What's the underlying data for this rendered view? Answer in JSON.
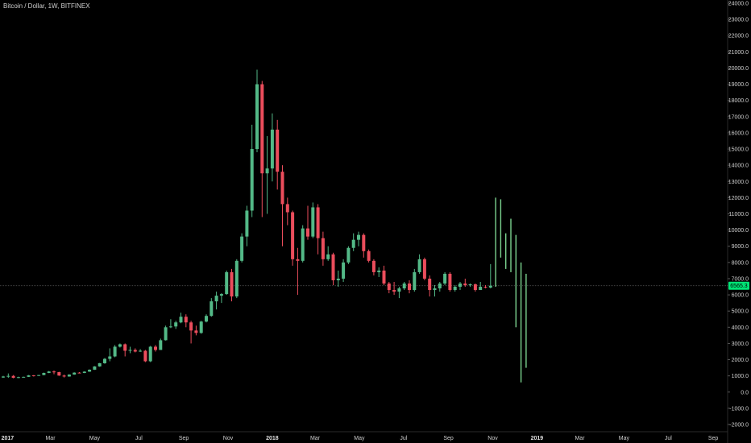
{
  "header": {
    "title": "Bitcoin / Dollar, 1W, BITFINEX"
  },
  "price_badge": {
    "label": "6565.3",
    "value": 6565.3,
    "color": "#00e676"
  },
  "colors": {
    "up": "#53b987",
    "down": "#eb4d5c",
    "projection": "#7bd38f",
    "axis_text": "#cfcfcf",
    "price_line": "#4a4a4a"
  },
  "chart_data": {
    "type": "candlestick",
    "title": "Bitcoin / Dollar, 1W, BITFINEX",
    "ylim": [
      -2000,
      24000
    ],
    "xlim": [
      "2016-12-26",
      "2019-09-30"
    ],
    "y_ticks": [
      "24000.0",
      "23000.0",
      "22000.0",
      "21000.0",
      "20000.0",
      "19000.0",
      "18000.0",
      "17000.0",
      "16000.0",
      "15000.0",
      "14000.0",
      "13000.0",
      "12000.0",
      "11000.0",
      "10000.0",
      "9000.0",
      "8000.0",
      "7000.0",
      "6000.0",
      "5000.0",
      "4000.0",
      "3000.0",
      "2000.0",
      "1000.0",
      "0.0",
      "-1000.0",
      "-2000.0"
    ],
    "x_ticks": [
      {
        "label": "2017",
        "date": "2017-01-01",
        "bold": true
      },
      {
        "label": "Mar",
        "date": "2017-03-01",
        "bold": false
      },
      {
        "label": "May",
        "date": "2017-05-01",
        "bold": false
      },
      {
        "label": "Jul",
        "date": "2017-07-01",
        "bold": false
      },
      {
        "label": "Sep",
        "date": "2017-09-01",
        "bold": false
      },
      {
        "label": "Nov",
        "date": "2017-11-01",
        "bold": false
      },
      {
        "label": "2018",
        "date": "2018-01-01",
        "bold": true
      },
      {
        "label": "Mar",
        "date": "2018-03-01",
        "bold": false
      },
      {
        "label": "May",
        "date": "2018-05-01",
        "bold": false
      },
      {
        "label": "Jul",
        "date": "2018-07-01",
        "bold": false
      },
      {
        "label": "Sep",
        "date": "2018-09-01",
        "bold": false
      },
      {
        "label": "Nov",
        "date": "2018-11-01",
        "bold": false
      },
      {
        "label": "2019",
        "date": "2019-01-01",
        "bold": true
      },
      {
        "label": "Mar",
        "date": "2019-03-01",
        "bold": false
      },
      {
        "label": "May",
        "date": "2019-05-01",
        "bold": false
      },
      {
        "label": "Jul",
        "date": "2019-07-01",
        "bold": false
      },
      {
        "label": "Sep",
        "date": "2019-09-01",
        "bold": false
      }
    ],
    "candles": [
      {
        "date": "2016-12-26",
        "open": 900,
        "high": 1000,
        "low": 880,
        "close": 960
      },
      {
        "date": "2017-01-02",
        "open": 960,
        "high": 1150,
        "low": 880,
        "close": 1000
      },
      {
        "date": "2017-01-09",
        "open": 1000,
        "high": 1050,
        "low": 850,
        "close": 880
      },
      {
        "date": "2017-01-16",
        "open": 880,
        "high": 950,
        "low": 860,
        "close": 920
      },
      {
        "date": "2017-01-23",
        "open": 920,
        "high": 950,
        "low": 900,
        "close": 940
      },
      {
        "date": "2017-01-30",
        "open": 940,
        "high": 1050,
        "low": 930,
        "close": 1030
      },
      {
        "date": "2017-02-06",
        "open": 1030,
        "high": 1050,
        "low": 960,
        "close": 1000
      },
      {
        "date": "2017-02-13",
        "open": 1000,
        "high": 1060,
        "low": 990,
        "close": 1050
      },
      {
        "date": "2017-02-20",
        "open": 1050,
        "high": 1200,
        "low": 1040,
        "close": 1180
      },
      {
        "date": "2017-02-27",
        "open": 1180,
        "high": 1300,
        "low": 1170,
        "close": 1270
      },
      {
        "date": "2017-03-06",
        "open": 1270,
        "high": 1330,
        "low": 1100,
        "close": 1230
      },
      {
        "date": "2017-03-13",
        "open": 1230,
        "high": 1250,
        "low": 1000,
        "close": 1020
      },
      {
        "date": "2017-03-20",
        "open": 1020,
        "high": 1080,
        "low": 900,
        "close": 960
      },
      {
        "date": "2017-03-27",
        "open": 960,
        "high": 1100,
        "low": 950,
        "close": 1080
      },
      {
        "date": "2017-04-03",
        "open": 1080,
        "high": 1220,
        "low": 1070,
        "close": 1200
      },
      {
        "date": "2017-04-10",
        "open": 1200,
        "high": 1230,
        "low": 1150,
        "close": 1180
      },
      {
        "date": "2017-04-17",
        "open": 1180,
        "high": 1280,
        "low": 1170,
        "close": 1260
      },
      {
        "date": "2017-04-24",
        "open": 1260,
        "high": 1400,
        "low": 1250,
        "close": 1380
      },
      {
        "date": "2017-05-01",
        "open": 1380,
        "high": 1600,
        "low": 1370,
        "close": 1580
      },
      {
        "date": "2017-05-08",
        "open": 1580,
        "high": 1800,
        "low": 1560,
        "close": 1780
      },
      {
        "date": "2017-05-15",
        "open": 1780,
        "high": 2100,
        "low": 1750,
        "close": 2050
      },
      {
        "date": "2017-05-22",
        "open": 2050,
        "high": 2700,
        "low": 1900,
        "close": 2200
      },
      {
        "date": "2017-05-29",
        "open": 2200,
        "high": 2900,
        "low": 2150,
        "close": 2800
      },
      {
        "date": "2017-06-05",
        "open": 2800,
        "high": 3000,
        "low": 2750,
        "close": 2950
      },
      {
        "date": "2017-06-12",
        "open": 2950,
        "high": 3000,
        "low": 2200,
        "close": 2550
      },
      {
        "date": "2017-06-19",
        "open": 2550,
        "high": 2800,
        "low": 2400,
        "close": 2600
      },
      {
        "date": "2017-06-26",
        "open": 2600,
        "high": 2700,
        "low": 2450,
        "close": 2500
      },
      {
        "date": "2017-07-03",
        "open": 2500,
        "high": 2650,
        "low": 2480,
        "close": 2550
      },
      {
        "date": "2017-07-10",
        "open": 2550,
        "high": 2600,
        "low": 1850,
        "close": 1900
      },
      {
        "date": "2017-07-17",
        "open": 1900,
        "high": 2850,
        "low": 1850,
        "close": 2800
      },
      {
        "date": "2017-07-24",
        "open": 2800,
        "high": 2900,
        "low": 2500,
        "close": 2600
      },
      {
        "date": "2017-07-31",
        "open": 2600,
        "high": 3300,
        "low": 2600,
        "close": 3200
      },
      {
        "date": "2017-08-07",
        "open": 3200,
        "high": 4100,
        "low": 3180,
        "close": 4000
      },
      {
        "date": "2017-08-14",
        "open": 4000,
        "high": 4500,
        "low": 3950,
        "close": 4050
      },
      {
        "date": "2017-08-21",
        "open": 4050,
        "high": 4400,
        "low": 3900,
        "close": 4300
      },
      {
        "date": "2017-08-28",
        "open": 4300,
        "high": 4900,
        "low": 4250,
        "close": 4650
      },
      {
        "date": "2017-09-04",
        "open": 4650,
        "high": 4800,
        "low": 4000,
        "close": 4300
      },
      {
        "date": "2017-09-11",
        "open": 4300,
        "high": 4400,
        "low": 3000,
        "close": 3800
      },
      {
        "date": "2017-09-18",
        "open": 3800,
        "high": 4100,
        "low": 3500,
        "close": 3650
      },
      {
        "date": "2017-09-25",
        "open": 3650,
        "high": 4400,
        "low": 3600,
        "close": 4350
      },
      {
        "date": "2017-10-02",
        "open": 4350,
        "high": 4800,
        "low": 4300,
        "close": 4700
      },
      {
        "date": "2017-10-09",
        "open": 4700,
        "high": 5800,
        "low": 4650,
        "close": 5600
      },
      {
        "date": "2017-10-16",
        "open": 5600,
        "high": 6200,
        "low": 5100,
        "close": 5950
      },
      {
        "date": "2017-10-23",
        "open": 5950,
        "high": 6100,
        "low": 5500,
        "close": 6050
      },
      {
        "date": "2017-10-30",
        "open": 6050,
        "high": 7500,
        "low": 6000,
        "close": 7400
      },
      {
        "date": "2017-11-06",
        "open": 7400,
        "high": 7600,
        "low": 5600,
        "close": 5900
      },
      {
        "date": "2017-11-13",
        "open": 5900,
        "high": 8200,
        "low": 5800,
        "close": 8100
      },
      {
        "date": "2017-11-20",
        "open": 8100,
        "high": 9800,
        "low": 8000,
        "close": 9600
      },
      {
        "date": "2017-11-27",
        "open": 9600,
        "high": 11500,
        "low": 9000,
        "close": 11200
      },
      {
        "date": "2017-12-04",
        "open": 11200,
        "high": 16500,
        "low": 10800,
        "close": 15000
      },
      {
        "date": "2017-12-11",
        "open": 15000,
        "high": 19900,
        "low": 14800,
        "close": 19000
      },
      {
        "date": "2017-12-18",
        "open": 19000,
        "high": 19200,
        "low": 10800,
        "close": 13500
      },
      {
        "date": "2017-12-25",
        "open": 13500,
        "high": 15800,
        "low": 11000,
        "close": 13800
      },
      {
        "date": "2018-01-01",
        "open": 13800,
        "high": 17200,
        "low": 13000,
        "close": 16200
      },
      {
        "date": "2018-01-08",
        "open": 16200,
        "high": 16800,
        "low": 12500,
        "close": 13600
      },
      {
        "date": "2018-01-15",
        "open": 13600,
        "high": 14000,
        "low": 9000,
        "close": 11600
      },
      {
        "date": "2018-01-22",
        "open": 11600,
        "high": 12000,
        "low": 10300,
        "close": 11100
      },
      {
        "date": "2018-01-29",
        "open": 11100,
        "high": 11200,
        "low": 7800,
        "close": 8200
      },
      {
        "date": "2018-02-05",
        "open": 8200,
        "high": 8900,
        "low": 6000,
        "close": 8100
      },
      {
        "date": "2018-02-12",
        "open": 8100,
        "high": 10300,
        "low": 8000,
        "close": 10100
      },
      {
        "date": "2018-02-19",
        "open": 10100,
        "high": 11500,
        "low": 9400,
        "close": 9600
      },
      {
        "date": "2018-02-26",
        "open": 9600,
        "high": 11700,
        "low": 9500,
        "close": 11400
      },
      {
        "date": "2018-03-05",
        "open": 11400,
        "high": 11600,
        "low": 8500,
        "close": 9500
      },
      {
        "date": "2018-03-12",
        "open": 9500,
        "high": 9900,
        "low": 7800,
        "close": 8200
      },
      {
        "date": "2018-03-19",
        "open": 8200,
        "high": 9000,
        "low": 8100,
        "close": 8500
      },
      {
        "date": "2018-03-26",
        "open": 8500,
        "high": 8600,
        "low": 6600,
        "close": 6900
      },
      {
        "date": "2018-04-02",
        "open": 6900,
        "high": 7500,
        "low": 6500,
        "close": 7000
      },
      {
        "date": "2018-04-09",
        "open": 7000,
        "high": 8200,
        "low": 6800,
        "close": 8000
      },
      {
        "date": "2018-04-16",
        "open": 8000,
        "high": 9000,
        "low": 7900,
        "close": 8900
      },
      {
        "date": "2018-04-23",
        "open": 8900,
        "high": 9800,
        "low": 8700,
        "close": 9400
      },
      {
        "date": "2018-04-30",
        "open": 9400,
        "high": 9900,
        "low": 9000,
        "close": 9700
      },
      {
        "date": "2018-05-07",
        "open": 9700,
        "high": 9800,
        "low": 8300,
        "close": 8700
      },
      {
        "date": "2018-05-14",
        "open": 8700,
        "high": 8800,
        "low": 8000,
        "close": 8100
      },
      {
        "date": "2018-05-21",
        "open": 8100,
        "high": 8200,
        "low": 7200,
        "close": 7400
      },
      {
        "date": "2018-05-28",
        "open": 7400,
        "high": 7700,
        "low": 7100,
        "close": 7500
      },
      {
        "date": "2018-06-04",
        "open": 7500,
        "high": 7800,
        "low": 6600,
        "close": 6700
      },
      {
        "date": "2018-06-11",
        "open": 6700,
        "high": 6800,
        "low": 6100,
        "close": 6300
      },
      {
        "date": "2018-06-18",
        "open": 6300,
        "high": 6800,
        "low": 6000,
        "close": 6200
      },
      {
        "date": "2018-06-25",
        "open": 6200,
        "high": 6500,
        "low": 5800,
        "close": 6400
      },
      {
        "date": "2018-07-02",
        "open": 6400,
        "high": 6800,
        "low": 6300,
        "close": 6700
      },
      {
        "date": "2018-07-09",
        "open": 6700,
        "high": 6900,
        "low": 6100,
        "close": 6300
      },
      {
        "date": "2018-07-16",
        "open": 6300,
        "high": 7600,
        "low": 6200,
        "close": 7400
      },
      {
        "date": "2018-07-23",
        "open": 7400,
        "high": 8500,
        "low": 7300,
        "close": 8200
      },
      {
        "date": "2018-07-30",
        "open": 8200,
        "high": 8300,
        "low": 6900,
        "close": 7000
      },
      {
        "date": "2018-08-06",
        "open": 7000,
        "high": 7200,
        "low": 5900,
        "close": 6300
      },
      {
        "date": "2018-08-13",
        "open": 6300,
        "high": 6600,
        "low": 5900,
        "close": 6400
      },
      {
        "date": "2018-08-20",
        "open": 6400,
        "high": 6800,
        "low": 6200,
        "close": 6700
      },
      {
        "date": "2018-08-27",
        "open": 6700,
        "high": 7400,
        "low": 6600,
        "close": 7300
      },
      {
        "date": "2018-09-03",
        "open": 7300,
        "high": 7400,
        "low": 6200,
        "close": 6300
      },
      {
        "date": "2018-09-10",
        "open": 6300,
        "high": 6600,
        "low": 6200,
        "close": 6500
      },
      {
        "date": "2018-09-17",
        "open": 6500,
        "high": 6800,
        "low": 6300,
        "close": 6700
      },
      {
        "date": "2018-09-24",
        "open": 6700,
        "high": 7000,
        "low": 6500,
        "close": 6600
      },
      {
        "date": "2018-10-01",
        "open": 6600,
        "high": 6700,
        "low": 6500,
        "close": 6650
      },
      {
        "date": "2018-10-08",
        "open": 6650,
        "high": 6700,
        "low": 6200,
        "close": 6300
      },
      {
        "date": "2018-10-15",
        "open": 6300,
        "high": 6800,
        "low": 6300,
        "close": 6500
      },
      {
        "date": "2018-10-22",
        "open": 6500,
        "high": 6600,
        "low": 6400,
        "close": 6450
      },
      {
        "date": "2018-10-29",
        "open": 6450,
        "high": 7900,
        "low": 6400,
        "close": 6565.3
      }
    ],
    "projection_bars": [
      {
        "date": "2018-11-05",
        "high": 12000,
        "low": 6500
      },
      {
        "date": "2018-11-12",
        "high": 11900,
        "low": 8300
      },
      {
        "date": "2018-11-19",
        "high": 9800,
        "low": 7600
      },
      {
        "date": "2018-11-26",
        "high": 10700,
        "low": 7400
      },
      {
        "date": "2018-12-03",
        "high": 9700,
        "low": 4000
      },
      {
        "date": "2018-12-10",
        "high": 8000,
        "low": 600
      },
      {
        "date": "2018-12-17",
        "high": 7300,
        "low": 1500
      }
    ],
    "current_price": 6565.3
  }
}
